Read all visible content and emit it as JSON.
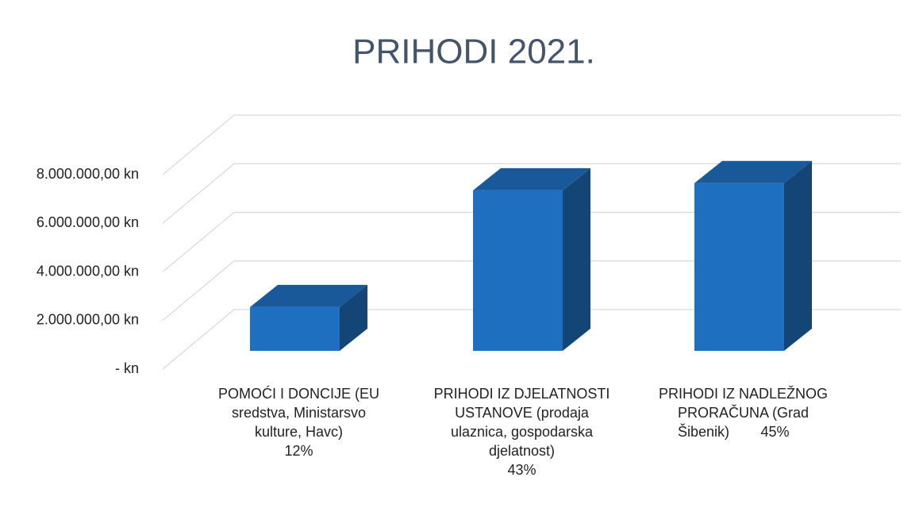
{
  "chart_data": {
    "type": "bar3d",
    "title": "PRIHODI 2021.",
    "categories": [
      [
        "POMOĆI I DONCIJE (EU",
        "sredstva, Ministarsvo",
        "kulture, Havc)"
      ],
      [
        "PRIHODI IZ DJELATNOSTI",
        "USTANOVE (prodaja",
        "ulaznica, gospodarska",
        "djelatnost)"
      ],
      [
        "PRIHODI IZ NADLEŽNOG",
        "PRORAČUNA (Grad",
        "Šibenik)"
      ]
    ],
    "values": [
      1800000,
      6600000,
      6900000
    ],
    "share_labels": [
      "12%",
      "43%",
      "45%"
    ],
    "color": "#1f6fc0",
    "ylim": [
      0,
      8000000
    ],
    "yticks": [
      {
        "value": 0,
        "label": "-   kn"
      },
      {
        "value": 2000000,
        "label": "2.000.000,00 kn"
      },
      {
        "value": 4000000,
        "label": "4.000.000,00 kn"
      },
      {
        "value": 6000000,
        "label": "6.000.000,00 kn"
      },
      {
        "value": 8000000,
        "label": "8.000.000,00 kn"
      }
    ],
    "grid": true
  }
}
